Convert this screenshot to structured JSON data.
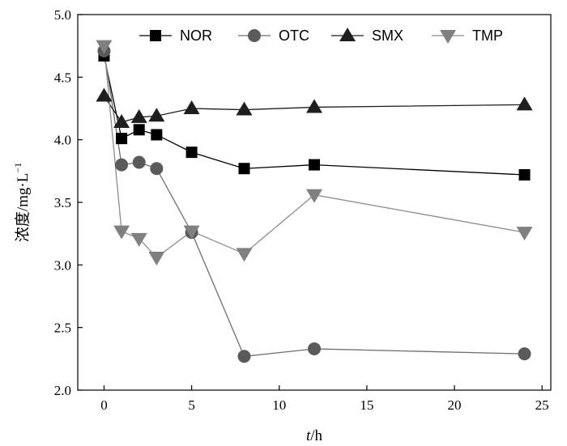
{
  "chart_data": {
    "type": "line",
    "title": "",
    "xlabel": {
      "var": "t",
      "unit": "/h"
    },
    "ylabel": {
      "text": "浓度/mg·L",
      "sup": "−1"
    },
    "xlim": [
      -1.5,
      25.5
    ],
    "ylim": [
      2.0,
      5.0
    ],
    "xticks": [
      0,
      5,
      10,
      15,
      20,
      25
    ],
    "yticks": [
      "2.0",
      "2.5",
      "3.0",
      "3.5",
      "4.0",
      "4.5",
      "5.0"
    ],
    "grid": false,
    "legend_position": "top",
    "series": [
      {
        "name": "NOR",
        "marker": "square",
        "color": "#000000",
        "line_color": "#000000",
        "x": [
          0,
          1,
          2,
          3,
          5,
          8,
          12,
          24
        ],
        "y": [
          4.67,
          4.01,
          4.08,
          4.04,
          3.9,
          3.77,
          3.8,
          3.72
        ]
      },
      {
        "name": "OTC",
        "marker": "circle",
        "color": "#5a5a5a",
        "line_color": "#6e6e6e",
        "x": [
          0,
          1,
          2,
          3,
          5,
          8,
          12,
          24
        ],
        "y": [
          4.71,
          3.8,
          3.82,
          3.77,
          3.26,
          2.27,
          2.33,
          2.29
        ]
      },
      {
        "name": "SMX",
        "marker": "triangle-up",
        "color": "#1e1e1e",
        "line_color": "#1e1e1e",
        "x": [
          0,
          1,
          2,
          3,
          5,
          8,
          12,
          24
        ],
        "y": [
          4.35,
          4.14,
          4.18,
          4.19,
          4.25,
          4.24,
          4.26,
          4.28
        ]
      },
      {
        "name": "TMP",
        "marker": "triangle-down",
        "color": "#808080",
        "line_color": "#8c8c8c",
        "x": [
          0,
          1,
          2,
          3,
          5,
          8,
          12,
          24
        ],
        "y": [
          4.75,
          3.27,
          3.21,
          3.06,
          3.27,
          3.09,
          3.56,
          3.26
        ]
      }
    ]
  }
}
